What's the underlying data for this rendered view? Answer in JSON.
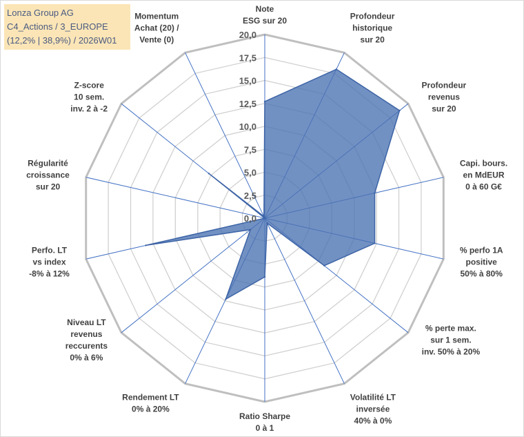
{
  "info_box": {
    "line1": "Lonza Group AG",
    "line2": "C4_Actions / 3_EUROPE",
    "line3": "(12,2% | 38,9%) / 2026W01"
  },
  "colors": {
    "fill": "#4a72b2",
    "stroke": "#3d64a6",
    "spoke": "#4472c4",
    "grid": "#d0d0d0",
    "outer": "#bfbfbf",
    "info_bg": "#fbe5b6"
  },
  "chart_data": {
    "type": "radar",
    "rmin": 0,
    "rmax": 20,
    "ticks": [
      "0,0",
      "2,5",
      "5,0",
      "7,5",
      "10,0",
      "12,5",
      "15,0",
      "17,5",
      "20,0"
    ],
    "tick_values": [
      0,
      2.5,
      5,
      7.5,
      10,
      12.5,
      15,
      17.5,
      20
    ],
    "axes": [
      [
        "Note",
        "ESG sur 20"
      ],
      [
        "Profondeur",
        "historique",
        "sur 20"
      ],
      [
        "Profondeur",
        "revenus",
        "sur 20"
      ],
      [
        "Capi. bours.",
        "en MdEUR",
        "0 à 60 G€"
      ],
      [
        "% perfo 1A",
        "positive",
        "50% à 80%"
      ],
      [
        "% perte max.",
        "sur 1 sem.",
        "inv. 50% à 20%"
      ],
      [
        "Volatilité LT",
        "inversée",
        "40% à 0%"
      ],
      [
        "Ratio Sharpe",
        "0 à 1"
      ],
      [
        "Rendement LT",
        "0% à 20%"
      ],
      [
        "Niveau LT",
        "revenus",
        "reccurents",
        "0% à 6%"
      ],
      [
        "Perfo. LT",
        "vs index",
        "-8% à 12%"
      ],
      [
        "Régularité",
        "croissance",
        "sur 20"
      ],
      [
        "Z-score",
        "10 sem.",
        "inv. 2 à -2"
      ],
      [
        "Momentum",
        "Achat (20) /",
        "Vente (0)"
      ]
    ],
    "values": [
      12.7,
      18.0,
      18.8,
      12.3,
      12.3,
      8.3,
      0.6,
      6.4,
      9.8,
      2.0,
      13.3,
      0.0,
      7.8,
      0.2
    ]
  }
}
